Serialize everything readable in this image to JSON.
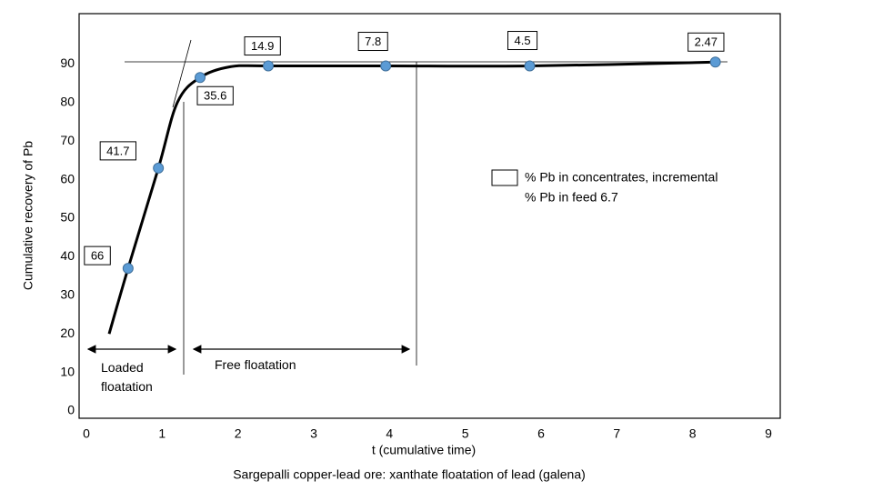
{
  "chart_data": {
    "type": "scatter",
    "y_label": "Cumulative recovery of Pb",
    "x_label": "t (cumulative time)",
    "caption": "Sargepalli copper-lead ore:  xanthate floatation of lead (galena)",
    "xlim": [
      0,
      9
    ],
    "ylim": [
      0,
      100
    ],
    "xticks": [
      0,
      1,
      2,
      3,
      4,
      5,
      6,
      7,
      8,
      9
    ],
    "yticks": [
      0,
      10,
      20,
      30,
      40,
      50,
      60,
      70,
      80,
      90
    ],
    "series": [
      {
        "name": "% Pb in concentrates, incremental",
        "color": "#5b9bd5",
        "x": [
          0.55,
          0.95,
          1.5,
          2.4,
          3.95,
          5.85,
          8.3
        ],
        "values": [
          37,
          63,
          86.5,
          89.5,
          89.5,
          89.5,
          90.5
        ],
        "concentrate_grade": [
          66,
          41.7,
          35.6,
          14.9,
          7.8,
          4.5,
          2.47
        ]
      }
    ],
    "curve": {
      "color": "#000000",
      "x": [
        0.3,
        0.55,
        0.95,
        1.2,
        1.5,
        1.9,
        2.4,
        3.95,
        5.85,
        8.3
      ],
      "y": [
        20,
        37,
        63,
        80,
        86.5,
        89.3,
        89.5,
        89.5,
        89.5,
        90.5
      ]
    },
    "legend_note": "% Pb in feed 6.7",
    "annotations": [
      "Loaded floatation",
      "Free floatation"
    ]
  }
}
